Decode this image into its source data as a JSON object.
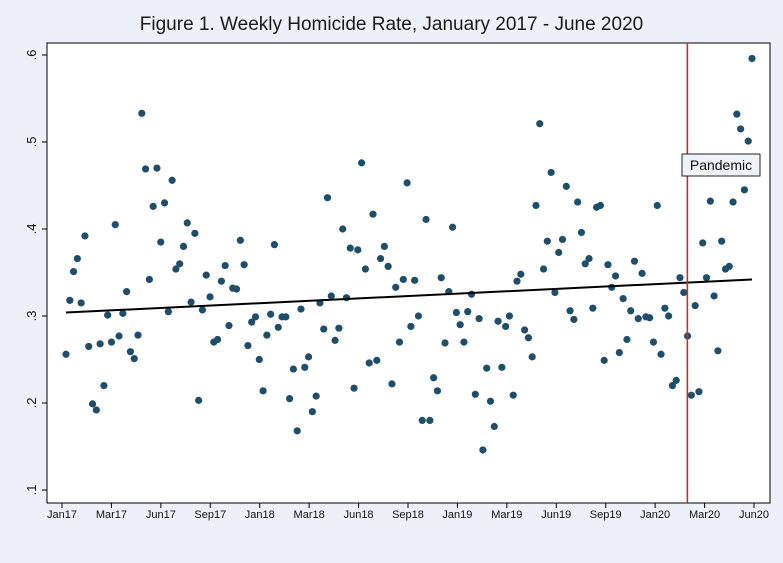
{
  "chart_data": {
    "type": "scatter",
    "title": "Figure 1. Weekly Homicide Rate, January 2017 - June 2020",
    "xlabel": "",
    "ylabel": "",
    "x_tick_labels": [
      "Jan17",
      "Mar17",
      "Jun17",
      "Sep17",
      "Jan18",
      "Mar18",
      "Jun18",
      "Sep18",
      "Jan19",
      "Mar19",
      "Jun19",
      "Sep19",
      "Jan20",
      "Mar20",
      "Jun20"
    ],
    "y_tick_labels": [
      ".1",
      ".2",
      ".3",
      ".4",
      ".5",
      ".6"
    ],
    "ylim": [
      0.085,
      0.625
    ],
    "grid": false,
    "marker_color": "#1f4e6b",
    "trend_line": {
      "color": "#000000",
      "start_value": 0.304,
      "end_value": 0.342
    },
    "event_marker": {
      "label": "Pandemic",
      "color": "#d62728",
      "week_index": 165
    },
    "series": [
      {
        "values": [
          0.256,
          0.318,
          0.351,
          0.366,
          0.315,
          0.392,
          0.265,
          0.199,
          0.192,
          0.268,
          0.22,
          0.301,
          0.27,
          0.405,
          0.277,
          0.303,
          0.328,
          0.259,
          0.251,
          0.278,
          0.533,
          0.469,
          0.342,
          0.426,
          0.47,
          0.385,
          0.43,
          0.305,
          0.456,
          0.354,
          0.36,
          0.38,
          0.407,
          0.316,
          0.395,
          0.203,
          0.307,
          0.347,
          0.322,
          0.27,
          0.273,
          0.34,
          0.358,
          0.289,
          0.332,
          0.331,
          0.387,
          0.359,
          0.266,
          0.293,
          0.299,
          0.25,
          0.214,
          0.278,
          0.302,
          0.382,
          0.287,
          0.299,
          0.299,
          0.205,
          0.239,
          0.168,
          0.308,
          0.241,
          0.253,
          0.19,
          0.208,
          0.315,
          0.285,
          0.436,
          0.323,
          0.272,
          0.286,
          0.4,
          0.321,
          0.378,
          0.217,
          0.376,
          0.476,
          0.354,
          0.246,
          0.417,
          0.249,
          0.366,
          0.38,
          0.357,
          0.222,
          0.333,
          0.27,
          0.342,
          0.453,
          0.288,
          0.341,
          0.3,
          0.18,
          0.411,
          0.18,
          0.229,
          0.214,
          0.344,
          0.269,
          0.328,
          0.402,
          0.304,
          0.29,
          0.27,
          0.305,
          0.325,
          0.21,
          0.297,
          0.146,
          0.24,
          0.202,
          0.173,
          0.294,
          0.241,
          0.288,
          0.3,
          0.209,
          0.34,
          0.348,
          0.284,
          0.275,
          0.253,
          0.427,
          0.521,
          0.354,
          0.386,
          0.465,
          0.327,
          0.373,
          0.388,
          0.449,
          0.306,
          0.296,
          0.431,
          0.396,
          0.36,
          0.366,
          0.309,
          0.425,
          0.427,
          0.249,
          0.359,
          0.333,
          0.346,
          0.258,
          0.32,
          0.273,
          0.306,
          0.363,
          0.297,
          0.349,
          0.299,
          0.298,
          0.27,
          0.427,
          0.256,
          0.309,
          0.3,
          0.22,
          0.226,
          0.344,
          0.327,
          0.277,
          0.209,
          0.312,
          0.213,
          0.384,
          0.344,
          0.432,
          0.323,
          0.26,
          0.386,
          0.354,
          0.357,
          0.431,
          0.532,
          0.515,
          0.445,
          0.501,
          0.596
        ]
      }
    ]
  }
}
